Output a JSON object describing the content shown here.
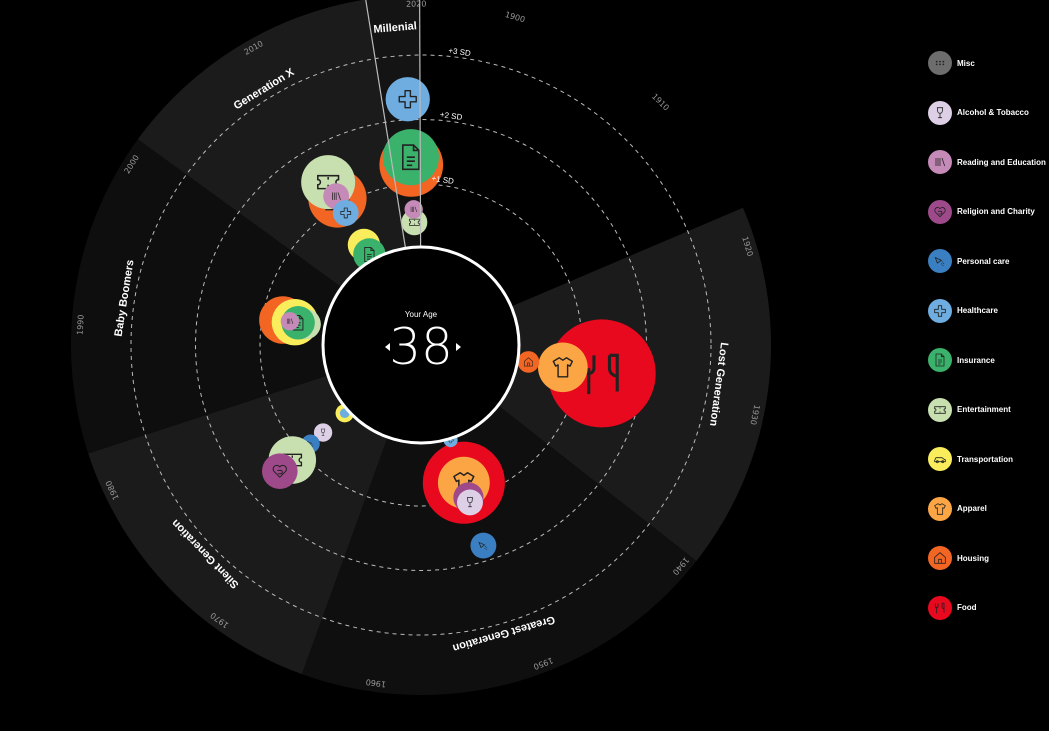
{
  "center": {
    "caption": "Your Age",
    "age": "38"
  },
  "chart_data": {
    "type": "radial-bubble",
    "angular_axis": "year",
    "radial_axis": "standard deviation",
    "sd_labels": [
      "+1 SD",
      "+2 SD",
      "+3 SD"
    ],
    "year_ticks": [
      1900,
      1910,
      1920,
      1930,
      1940,
      1950,
      1960,
      1970,
      1980,
      1990,
      2000,
      2010,
      2020
    ],
    "generations": [
      {
        "name": "Lost Generation",
        "start": 1917.8,
        "end": 1939.2,
        "shade": "#1b1b1b"
      },
      {
        "name": "Greatest Generation",
        "start": 1939.2,
        "end": 1964.3,
        "shade": "#0f0f0f"
      },
      {
        "name": "Silent Generation",
        "start": 1964.3,
        "end": 1982.5,
        "shade": "#1b1b1b"
      },
      {
        "name": "Baby Boomers",
        "start": 1982.5,
        "end": 2001.4,
        "shade": "#0e0e0e"
      },
      {
        "name": "Generation X",
        "start": 2001.4,
        "end": 2017.1,
        "shade": "#1b1b1b"
      },
      {
        "name": "Millenial",
        "start": 2017.1,
        "end": 2020.2,
        "shade": "#141414"
      }
    ],
    "bubbles": [
      {
        "generation": "Lost Generation",
        "year": 1929,
        "category": "food",
        "sd": 1.34,
        "size": 100
      },
      {
        "generation": "Lost Generation",
        "year": 1929,
        "category": "apparel",
        "sd": 0.73,
        "size": 46
      },
      {
        "generation": "Lost Generation",
        "year": 1929,
        "category": "housing",
        "sd": 0.19,
        "size": 20
      },
      {
        "generation": "Greatest Generation",
        "year": 1951.3,
        "category": "food",
        "sd": 0.74,
        "size": 76
      },
      {
        "generation": "Greatest Generation",
        "year": 1951.3,
        "category": "apparel",
        "sd": 0.74,
        "size": 48
      },
      {
        "generation": "Greatest Generation",
        "year": 1951.3,
        "category": "religion",
        "sd": 0.98,
        "size": 28
      },
      {
        "generation": "Greatest Generation",
        "year": 1951.3,
        "category": "alcohol",
        "sd": 1.06,
        "size": 24
      },
      {
        "generation": "Greatest Generation",
        "year": 1951.3,
        "category": "personal_care",
        "sd": 1.76,
        "size": 24
      },
      {
        "generation": "Greatest Generation",
        "year": 1951.3,
        "category": "healthcare",
        "sd": 0.05,
        "size": 13
      },
      {
        "generation": "Silent Generation",
        "year": 1974.2,
        "category": "transportation",
        "sd": 0.09,
        "size": 17
      },
      {
        "generation": "Silent Generation",
        "year": 1974.2,
        "category": "healthcare",
        "sd": 0.09,
        "size": 9
      },
      {
        "generation": "Silent Generation",
        "year": 1974.2,
        "category": "alcohol",
        "sd": 0.54,
        "size": 17
      },
      {
        "generation": "Silent Generation",
        "year": 1974.2,
        "category": "personal_care",
        "sd": 0.8,
        "size": 17
      },
      {
        "generation": "Silent Generation",
        "year": 1974.2,
        "category": "entertainment",
        "sd": 1.18,
        "size": 44
      },
      {
        "generation": "Silent Generation",
        "year": 1974.2,
        "category": "religion",
        "sd": 1.44,
        "size": 33
      },
      {
        "generation": "Baby Boomers",
        "year": 1992.4,
        "category": "housing",
        "sd": 0.68,
        "size": 44
      },
      {
        "generation": "Baby Boomers",
        "year": 1992.4,
        "category": "transportation",
        "sd": 0.49,
        "size": 43
      },
      {
        "generation": "Baby Boomers",
        "year": 1992.4,
        "category": "entertainment",
        "sd": 0.32,
        "size": 28
      },
      {
        "generation": "Baby Boomers",
        "year": 1992.4,
        "category": "insurance",
        "sd": 0.44,
        "size": 31
      },
      {
        "generation": "Baby Boomers",
        "year": 1992.4,
        "category": "reading",
        "sd": 0.57,
        "size": 17
      },
      {
        "generation": "Generation X",
        "year": 2009.9,
        "category": "housing",
        "sd": 1.12,
        "size": 54
      },
      {
        "generation": "Generation X",
        "year": 2009.9,
        "category": "entertainment",
        "sd": 1.41,
        "size": 50
      },
      {
        "generation": "Generation X",
        "year": 2009.9,
        "category": "reading",
        "sd": 1.16,
        "size": 24
      },
      {
        "generation": "Generation X",
        "year": 2009.9,
        "category": "healthcare",
        "sd": 0.86,
        "size": 24
      },
      {
        "generation": "Generation X",
        "year": 2009.9,
        "category": "transportation",
        "sd": 0.29,
        "size": 30
      },
      {
        "generation": "Generation X",
        "year": 2009.9,
        "category": "insurance",
        "sd": 0.12,
        "size": 30
      },
      {
        "generation": "Millenial",
        "year": 2019.2,
        "category": "healthcare",
        "sd": 2.32,
        "size": 41
      },
      {
        "generation": "Millenial",
        "year": 2019.2,
        "category": "housing",
        "sd": 1.3,
        "size": 59
      },
      {
        "generation": "Millenial",
        "year": 2019.2,
        "category": "insurance",
        "sd": 1.42,
        "size": 52
      },
      {
        "generation": "Millenial",
        "year": 2019.2,
        "category": "entertainment",
        "sd": 0.41,
        "size": 24
      },
      {
        "generation": "Millenial",
        "year": 2019.2,
        "category": "reading",
        "sd": 0.61,
        "size": 17
      }
    ]
  },
  "legend": [
    {
      "key": "misc",
      "label": "Misc",
      "color": "#6d6d6d",
      "icon": "dots-icon"
    },
    {
      "key": "alcohol",
      "label": "Alcohol & Tobacco",
      "color": "#ddd0e6",
      "icon": "wine-glass-icon"
    },
    {
      "key": "reading",
      "label": "Reading and Education",
      "color": "#c58ab8",
      "icon": "books-icon"
    },
    {
      "key": "religion",
      "label": "Religion and Charity",
      "color": "#9e4a8a",
      "icon": "heart-icon"
    },
    {
      "key": "personal_care",
      "label": "Personal care",
      "color": "#3a7fc1",
      "icon": "spray-icon"
    },
    {
      "key": "healthcare",
      "label": "Healthcare",
      "color": "#6fade0",
      "icon": "cross-icon"
    },
    {
      "key": "insurance",
      "label": "Insurance",
      "color": "#3bb26b",
      "icon": "document-icon"
    },
    {
      "key": "entertainment",
      "label": "Entertainment",
      "color": "#c8e0b0",
      "icon": "ticket-icon"
    },
    {
      "key": "transportation",
      "label": "Transportation",
      "color": "#f9ed5c",
      "icon": "car-icon"
    },
    {
      "key": "apparel",
      "label": "Apparel",
      "color": "#fca544",
      "icon": "shirt-icon"
    },
    {
      "key": "housing",
      "label": "Housing",
      "color": "#f26522",
      "icon": "house-icon"
    },
    {
      "key": "food",
      "label": "Food",
      "color": "#e8091e",
      "icon": "fork-knife-icon"
    }
  ]
}
